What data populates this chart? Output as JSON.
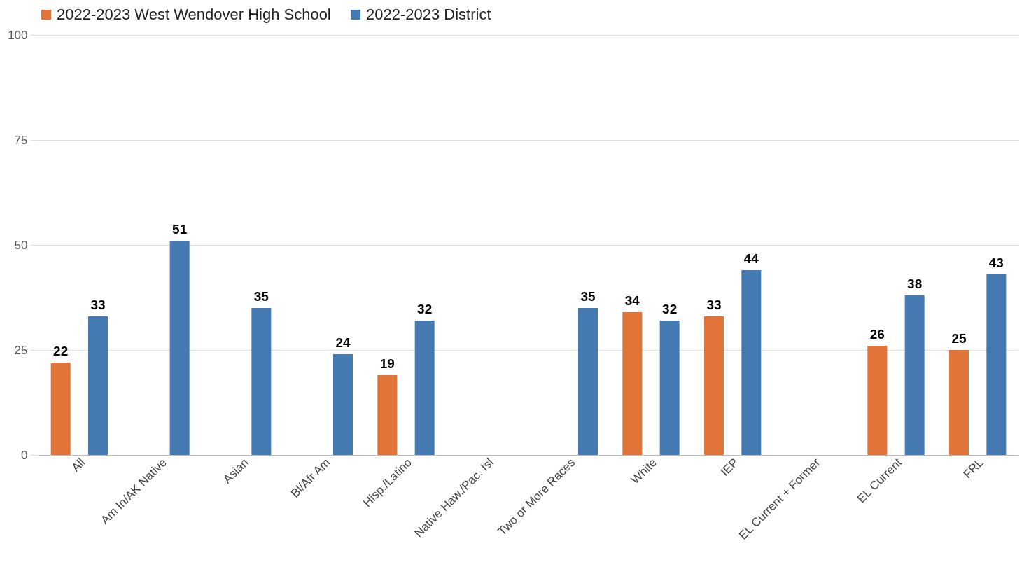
{
  "chart_data": {
    "type": "bar",
    "categories": [
      "All",
      "Am In/AK Native",
      "Asian",
      "Bl/Afr Am",
      "Hisp./Latino",
      "Native Haw./Pac. Isl",
      "Two or More Races",
      "White",
      "IEP",
      "EL Current + Former",
      "EL Current",
      "FRL"
    ],
    "series": [
      {
        "name": "2022-2023 West Wendover High School",
        "color": "#e07439",
        "values": [
          22,
          null,
          null,
          null,
          19,
          null,
          null,
          34,
          33,
          null,
          26,
          25
        ]
      },
      {
        "name": "2022-2023 District",
        "color": "#4579b1",
        "values": [
          33,
          51,
          35,
          24,
          32,
          null,
          35,
          32,
          44,
          null,
          38,
          43
        ]
      }
    ],
    "ylim": [
      0,
      100
    ],
    "yticks": [
      0,
      25,
      50,
      75,
      100
    ],
    "grid": "y",
    "legend": "top",
    "data_labels": true
  }
}
